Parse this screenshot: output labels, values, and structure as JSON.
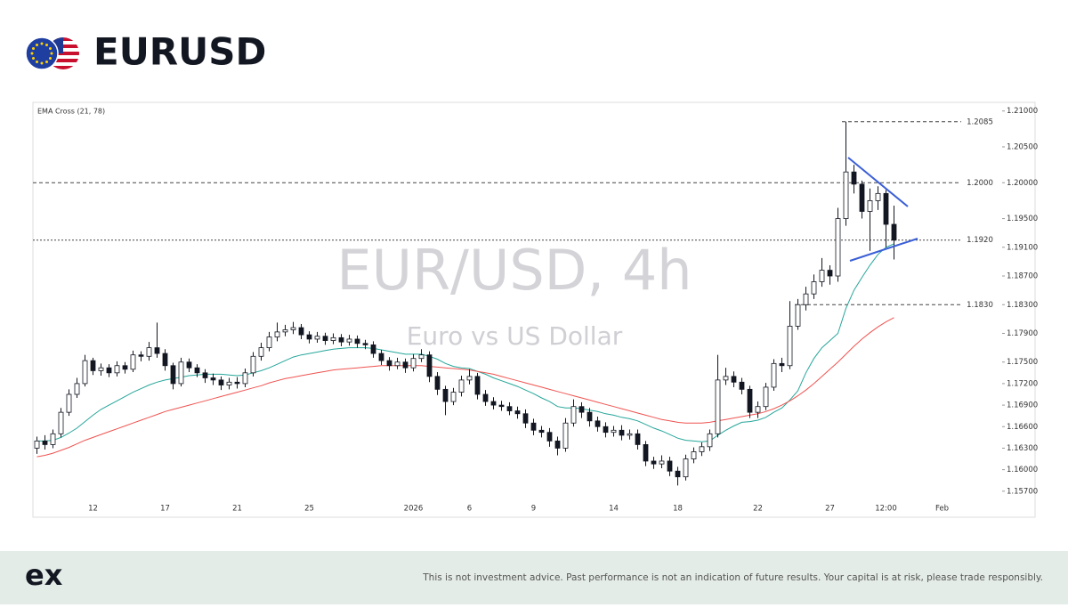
{
  "header": {
    "symbol": "EURUSD"
  },
  "footer": {
    "logo": "ex",
    "disclaimer": "This is not investment advice. Past performance is not an indication of future results. Your capital is at risk, please trade responsibly."
  },
  "chart_data": {
    "type": "candlestick",
    "title": "EUR/USD, 4h",
    "subtitle": "Euro vs US Dollar",
    "indicator": "EMA Cross (21, 78)",
    "up_color": "#ffffff",
    "down_color": "#131722",
    "outline_color": "#131722",
    "ylim": [
      1.1535,
      1.2112
    ],
    "yticks": [
      {
        "value": 1.21,
        "label": "1.21000"
      },
      {
        "value": 1.205,
        "label": "1.20500"
      },
      {
        "value": 1.2,
        "label": "1.20000"
      },
      {
        "value": 1.195,
        "label": "1.19500"
      },
      {
        "value": 1.191,
        "label": "1.19100"
      },
      {
        "value": 1.187,
        "label": "1.18700"
      },
      {
        "value": 1.183,
        "label": "1.18300"
      },
      {
        "value": 1.179,
        "label": "1.17900"
      },
      {
        "value": 1.175,
        "label": "1.17500"
      },
      {
        "value": 1.172,
        "label": "1.17200"
      },
      {
        "value": 1.169,
        "label": "1.16900"
      },
      {
        "value": 1.166,
        "label": "1.16600"
      },
      {
        "value": 1.163,
        "label": "1.16300"
      },
      {
        "value": 1.16,
        "label": "1.16000"
      },
      {
        "value": 1.157,
        "label": "1.15700"
      }
    ],
    "levels": [
      1.2085,
      {
        "value": 1.2,
        "label": "1.2000"
      },
      {
        "value": 1.192,
        "label": "1.1920"
      },
      {
        "value": 1.183,
        "label": "1.1830"
      }
    ],
    "categories": [
      null,
      null,
      null,
      null,
      null,
      null,
      null,
      "12",
      null,
      null,
      null,
      null,
      null,
      null,
      null,
      null,
      "17",
      null,
      null,
      null,
      null,
      null,
      null,
      null,
      null,
      "21",
      null,
      null,
      null,
      null,
      null,
      null,
      null,
      null,
      "25",
      null,
      null,
      null,
      null,
      null,
      null,
      null,
      null,
      null,
      null,
      null,
      null,
      "2026",
      null,
      null,
      null,
      null,
      null,
      null,
      "6",
      null,
      null,
      null,
      null,
      null,
      null,
      null,
      "9",
      null,
      null,
      null,
      null,
      null,
      null,
      null,
      null,
      null,
      "14",
      null,
      null,
      null,
      null,
      null,
      null,
      null,
      "18",
      null,
      null,
      null,
      null,
      null,
      null,
      null,
      null,
      null,
      "22",
      null,
      null,
      null,
      null,
      null,
      null,
      null,
      null,
      "27",
      null,
      null,
      null,
      null,
      null,
      null,
      "12:00",
      null,
      null,
      null,
      null,
      null,
      null,
      "Feb",
      null
    ],
    "open": [
      1.163,
      1.164,
      1.1635,
      1.165,
      1.168,
      1.1705,
      1.172,
      1.1752,
      1.1738,
      1.1742,
      1.1735,
      1.1745,
      1.174,
      1.176,
      1.1758,
      1.177,
      1.1762,
      1.1745,
      1.172,
      1.175,
      1.1742,
      1.1735,
      1.1728,
      1.1725,
      1.1718,
      1.1722,
      1.172,
      1.1735,
      1.1758,
      1.177,
      1.1785,
      1.1792,
      1.1795,
      1.1798,
      1.1788,
      1.1782,
      1.1786,
      1.178,
      1.1784,
      1.1778,
      1.1782,
      1.1776,
      1.1774,
      1.1762,
      1.1752,
      1.1745,
      1.175,
      1.1742,
      1.1755,
      1.176,
      1.173,
      1.1712,
      1.1695,
      1.1708,
      1.1725,
      1.173,
      1.1705,
      1.1695,
      1.169,
      1.1688,
      1.1682,
      1.1678,
      1.1665,
      1.1655,
      1.1652,
      1.164,
      1.163,
      1.1665,
      1.1688,
      1.168,
      1.1668,
      1.166,
      1.1652,
      1.1655,
      1.1648,
      1.165,
      1.1635,
      1.1612,
      1.1608,
      1.1612,
      1.1598,
      1.159,
      1.1615,
      1.1625,
      1.1632,
      1.165,
      1.1725,
      1.173,
      1.1722,
      1.1712,
      1.168,
      1.1688,
      1.1715,
      1.1748,
      1.1745,
      1.18,
      1.183,
      1.1845,
      1.1862,
      1.1878,
      1.187,
      1.195,
      1.2015,
      1.1998,
      1.196,
      1.1975,
      1.1985,
      1.1942,
      null,
      null,
      null,
      null,
      null,
      null,
      null
    ],
    "high": [
      1.1646,
      1.1648,
      1.1656,
      1.1686,
      1.1712,
      1.1728,
      1.176,
      1.1756,
      1.1748,
      1.1747,
      1.1751,
      1.175,
      1.1766,
      1.1765,
      1.1778,
      1.1805,
      1.1768,
      1.1749,
      1.1756,
      1.1755,
      1.1747,
      1.174,
      1.1734,
      1.173,
      1.1728,
      1.1729,
      1.1741,
      1.1764,
      1.1777,
      1.1792,
      1.1805,
      1.1802,
      1.1806,
      1.1803,
      1.1793,
      1.1792,
      1.1791,
      1.179,
      1.1789,
      1.1788,
      1.1787,
      1.1781,
      1.1779,
      1.1767,
      1.1757,
      1.1756,
      1.1755,
      1.1761,
      1.1768,
      1.1765,
      1.1736,
      1.1717,
      1.1714,
      1.1731,
      1.174,
      1.1735,
      1.1711,
      1.1701,
      1.1696,
      1.1694,
      1.1688,
      1.1684,
      1.1671,
      1.1661,
      1.1658,
      1.1646,
      1.1672,
      1.1698,
      1.1694,
      1.1686,
      1.1674,
      1.1666,
      1.1661,
      1.1662,
      1.1656,
      1.1656,
      1.164,
      1.1618,
      1.162,
      1.1618,
      1.1604,
      1.1621,
      1.1631,
      1.1638,
      1.1656,
      1.176,
      1.1742,
      1.1737,
      1.1728,
      1.1717,
      1.1695,
      1.1721,
      1.1754,
      1.1756,
      1.1835,
      1.1838,
      1.1855,
      1.1872,
      1.1895,
      1.1885,
      1.1965,
      1.2085,
      1.2025,
      1.2003,
      1.1992,
      1.1995,
      1.199,
      1.1968,
      null,
      null,
      null,
      null,
      null,
      null,
      null
    ],
    "low": [
      1.1622,
      1.1628,
      1.163,
      1.1645,
      1.1675,
      1.17,
      1.1716,
      1.1732,
      1.1731,
      1.1729,
      1.173,
      1.1734,
      1.1736,
      1.1751,
      1.1752,
      1.1756,
      1.1738,
      1.1712,
      1.1716,
      1.1736,
      1.1729,
      1.1721,
      1.1718,
      1.1711,
      1.1712,
      1.1713,
      1.1715,
      1.173,
      1.1752,
      1.1765,
      1.1779,
      1.1786,
      1.1789,
      1.1782,
      1.1776,
      1.1777,
      1.1774,
      1.1775,
      1.1772,
      1.1773,
      1.177,
      1.1768,
      1.1756,
      1.1746,
      1.1738,
      1.174,
      1.1735,
      1.1737,
      1.175,
      1.1722,
      1.1704,
      1.1676,
      1.169,
      1.1702,
      1.1719,
      1.1698,
      1.1689,
      1.1684,
      1.1682,
      1.1676,
      1.1671,
      1.1658,
      1.1648,
      1.1645,
      1.1632,
      1.162,
      1.1625,
      1.166,
      1.1672,
      1.166,
      1.1653,
      1.1645,
      1.1646,
      1.1641,
      1.1642,
      1.1628,
      1.1605,
      1.1601,
      1.1602,
      1.1591,
      1.1578,
      1.1585,
      1.1609,
      1.1619,
      1.1626,
      1.1645,
      1.1718,
      1.1715,
      1.1705,
      1.1672,
      1.1672,
      1.1683,
      1.171,
      1.1736,
      1.174,
      1.1795,
      1.1822,
      1.1838,
      1.1855,
      1.1858,
      1.1862,
      1.194,
      1.1985,
      1.195,
      1.1905,
      1.1962,
      1.191,
      1.1893,
      null,
      null,
      null,
      null,
      null,
      null,
      null
    ],
    "close": [
      1.164,
      1.1635,
      1.165,
      1.168,
      1.1705,
      1.172,
      1.1752,
      1.1738,
      1.1742,
      1.1735,
      1.1745,
      1.174,
      1.176,
      1.1758,
      1.177,
      1.1762,
      1.1745,
      1.172,
      1.175,
      1.1742,
      1.1735,
      1.1728,
      1.1725,
      1.1718,
      1.1722,
      1.172,
      1.1735,
      1.1758,
      1.177,
      1.1785,
      1.1792,
      1.1795,
      1.1798,
      1.1788,
      1.1782,
      1.1786,
      1.178,
      1.1784,
      1.1778,
      1.1782,
      1.1776,
      1.1774,
      1.1762,
      1.1752,
      1.1745,
      1.175,
      1.1742,
      1.1755,
      1.176,
      1.173,
      1.1712,
      1.1695,
      1.1708,
      1.1725,
      1.173,
      1.1705,
      1.1695,
      1.169,
      1.1688,
      1.1682,
      1.1678,
      1.1665,
      1.1655,
      1.1652,
      1.164,
      1.163,
      1.1665,
      1.1688,
      1.168,
      1.1668,
      1.166,
      1.1652,
      1.1655,
      1.1648,
      1.165,
      1.1635,
      1.1612,
      1.1608,
      1.1612,
      1.1598,
      1.159,
      1.1615,
      1.1625,
      1.1632,
      1.165,
      1.1725,
      1.173,
      1.1722,
      1.1712,
      1.168,
      1.1688,
      1.1715,
      1.1748,
      1.1745,
      1.18,
      1.183,
      1.1845,
      1.1862,
      1.1878,
      1.187,
      1.195,
      1.2015,
      1.1998,
      1.196,
      1.1975,
      1.1985,
      1.1942,
      1.192,
      null,
      null,
      null,
      null,
      null,
      null,
      null
    ],
    "ema": [
      {
        "color": "#26a69a",
        "values": [
          1.164,
          1.164,
          1.1641,
          1.1645,
          1.1651,
          1.1658,
          1.1667,
          1.1676,
          1.1684,
          1.169,
          1.1696,
          1.1702,
          1.1708,
          1.1713,
          1.1718,
          1.1722,
          1.1725,
          1.1727,
          1.1729,
          1.1731,
          1.1732,
          1.1733,
          1.1733,
          1.1733,
          1.1732,
          1.1731,
          1.1732,
          1.1735,
          1.1738,
          1.1742,
          1.1747,
          1.1752,
          1.1757,
          1.176,
          1.1762,
          1.1764,
          1.1766,
          1.1768,
          1.1769,
          1.177,
          1.177,
          1.177,
          1.1769,
          1.1767,
          1.1765,
          1.1763,
          1.1761,
          1.1761,
          1.1761,
          1.1758,
          1.1754,
          1.1748,
          1.1744,
          1.1742,
          1.1741,
          1.1737,
          1.1733,
          1.1728,
          1.1724,
          1.172,
          1.1716,
          1.1711,
          1.1706,
          1.17,
          1.1695,
          1.1688,
          1.1686,
          1.1686,
          1.1685,
          1.1683,
          1.1681,
          1.1678,
          1.1676,
          1.1673,
          1.1671,
          1.1668,
          1.1663,
          1.1658,
          1.1654,
          1.1649,
          1.1644,
          1.1641,
          1.164,
          1.1639,
          1.164,
          1.1648,
          1.1655,
          1.1661,
          1.1666,
          1.1667,
          1.1669,
          1.1673,
          1.168,
          1.1686,
          1.1697,
          1.171,
          1.1735,
          1.1755,
          1.177,
          1.178,
          1.179,
          1.1825,
          1.185,
          1.1868,
          1.1885,
          1.19,
          1.191,
          1.1915,
          null,
          null,
          null,
          null,
          null,
          null,
          null
        ]
      },
      {
        "color": "#ef5350",
        "values": [
          1.1618,
          1.162,
          1.1623,
          1.1627,
          1.1631,
          1.1636,
          1.1641,
          1.1645,
          1.1649,
          1.1653,
          1.1657,
          1.1661,
          1.1665,
          1.1669,
          1.1673,
          1.1677,
          1.1681,
          1.1684,
          1.1687,
          1.169,
          1.1693,
          1.1696,
          1.1699,
          1.1702,
          1.1705,
          1.1708,
          1.1711,
          1.1714,
          1.1717,
          1.1721,
          1.1724,
          1.1727,
          1.1729,
          1.1731,
          1.1733,
          1.1735,
          1.1737,
          1.1739,
          1.174,
          1.1741,
          1.1742,
          1.1743,
          1.1744,
          1.1745,
          1.1745,
          1.1745,
          1.1745,
          1.1745,
          1.1745,
          1.1744,
          1.1743,
          1.1742,
          1.1741,
          1.174,
          1.1739,
          1.1737,
          1.1735,
          1.1733,
          1.173,
          1.1727,
          1.1724,
          1.1721,
          1.1718,
          1.1715,
          1.1712,
          1.1709,
          1.1706,
          1.1703,
          1.17,
          1.1697,
          1.1694,
          1.1691,
          1.1688,
          1.1685,
          1.1682,
          1.1679,
          1.1676,
          1.1673,
          1.167,
          1.1668,
          1.1666,
          1.1665,
          1.1665,
          1.1665,
          1.1666,
          1.1668,
          1.167,
          1.1672,
          1.1674,
          1.1676,
          1.1678,
          1.1681,
          1.1685,
          1.169,
          1.1696,
          1.1703,
          1.1711,
          1.172,
          1.173,
          1.174,
          1.175,
          1.1761,
          1.1772,
          1.1782,
          1.1791,
          1.1799,
          1.1806,
          1.1812,
          null,
          null,
          null,
          null,
          null,
          null,
          null
        ]
      }
    ]
  }
}
